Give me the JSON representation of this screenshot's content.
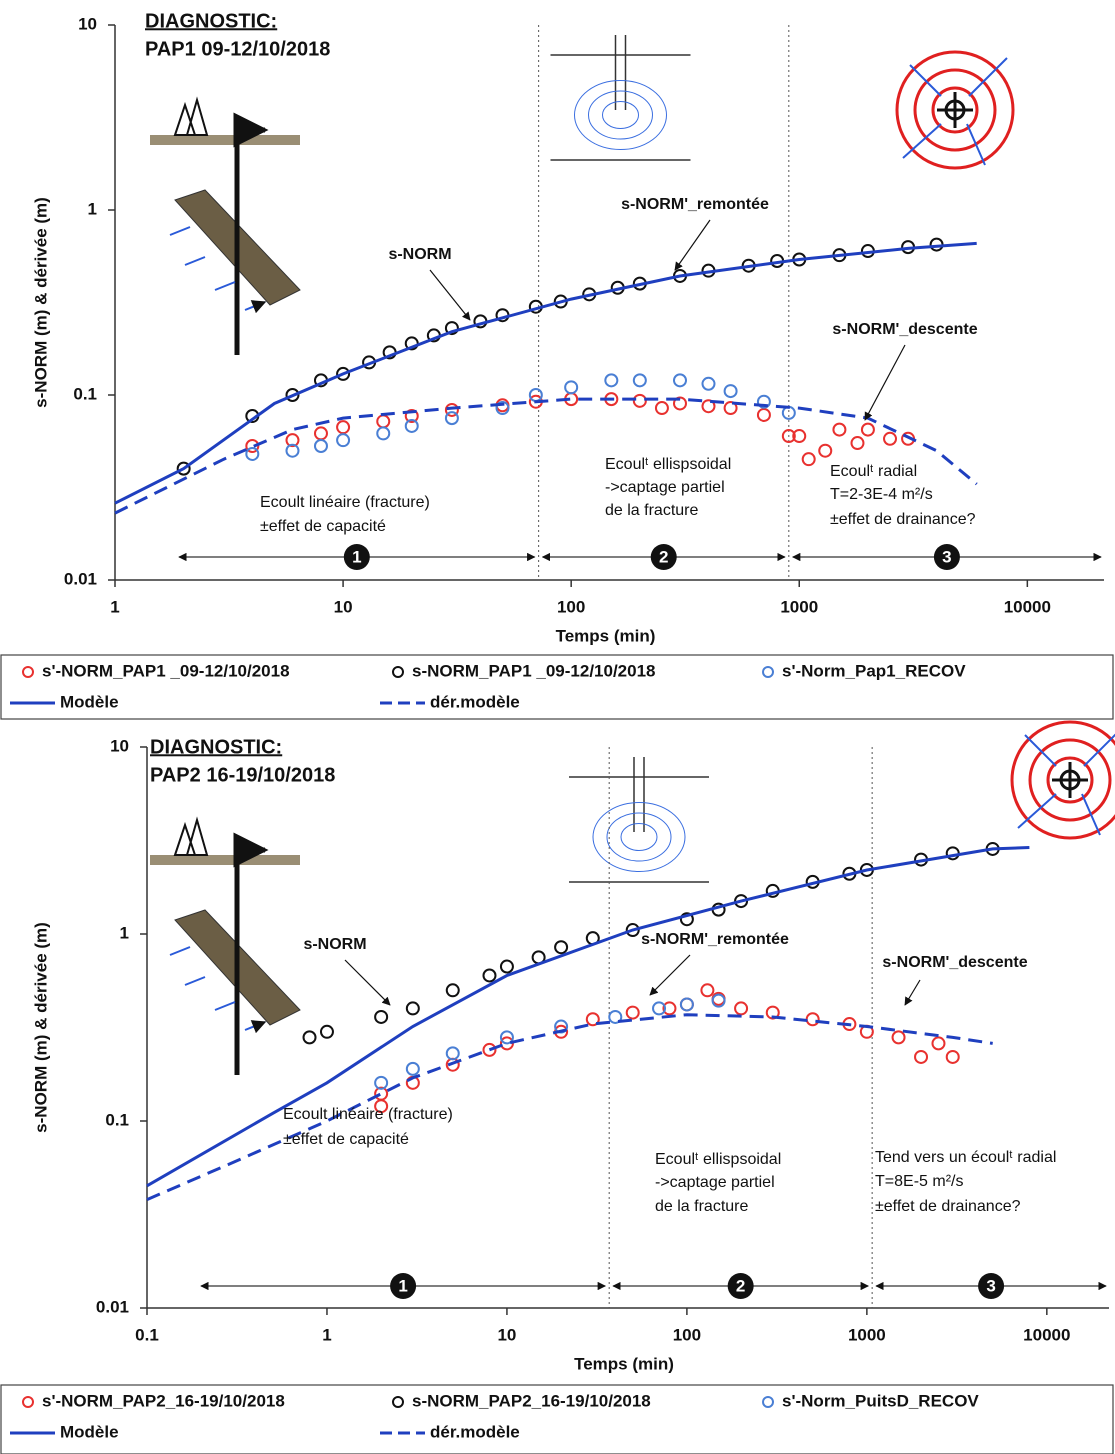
{
  "chart_data": [
    {
      "type": "scatter",
      "title": "DIAGNOSTIC:",
      "subtitle": "PAP1 09-12/10/2018",
      "x_label": "Temps (min)",
      "y_label": "s-NORM (m) & dérivée (m)",
      "xscale": "log",
      "yscale": "log",
      "xlim": [
        1,
        20000
      ],
      "ylim": [
        0.01,
        10
      ],
      "xticks": [
        1,
        10,
        100,
        1000,
        10000
      ],
      "yticks": [
        0.01,
        0.1,
        1,
        10
      ],
      "vlines": [
        72,
        900
      ],
      "regions": [
        "1",
        "2",
        "3"
      ],
      "annotations": [
        "s-NORM",
        "s-NORM'_remontée",
        "s-NORM'_descente",
        "Ecoult linéaire (fracture)",
        "±effet de capacité",
        "Ecoulᵗ ellispsoidal",
        "->captage partiel",
        "de la fracture",
        "Ecoulᵗ radial",
        "T=2-3E-4 m²/s",
        "±effet de drainance?"
      ],
      "series": [
        {
          "name": "s'-NORM_PAP1 _09-12/10/2018",
          "color": "#e8312f",
          "style": "circle",
          "x": [
            4,
            6,
            8,
            10,
            15,
            20,
            30,
            50,
            70,
            100,
            150,
            200,
            250,
            300,
            400,
            500,
            700,
            900,
            1000,
            1100,
            1300,
            1500,
            1800,
            2000,
            2500,
            3000
          ],
          "values": [
            0.053,
            0.057,
            0.062,
            0.067,
            0.072,
            0.077,
            0.083,
            0.088,
            0.092,
            0.095,
            0.095,
            0.093,
            0.085,
            0.09,
            0.087,
            0.085,
            0.078,
            0.06,
            0.06,
            0.045,
            0.05,
            0.065,
            0.055,
            0.065,
            0.058,
            0.058
          ]
        },
        {
          "name": "s-NORM_PAP1 _09-12/10/2018",
          "color": "#111111",
          "style": "circle",
          "x": [
            2,
            4,
            6,
            8,
            10,
            13,
            16,
            20,
            25,
            30,
            40,
            50,
            70,
            90,
            120,
            160,
            200,
            300,
            400,
            600,
            800,
            1000,
            1500,
            2000,
            3000,
            4000
          ],
          "values": [
            0.04,
            0.077,
            0.1,
            0.12,
            0.13,
            0.15,
            0.17,
            0.19,
            0.21,
            0.23,
            0.25,
            0.27,
            0.3,
            0.32,
            0.35,
            0.38,
            0.4,
            0.44,
            0.47,
            0.5,
            0.53,
            0.54,
            0.57,
            0.6,
            0.63,
            0.65
          ]
        },
        {
          "name": "s'-Norm_Pap1_RECOV",
          "color": "#4a7fd4",
          "style": "circle",
          "x": [
            4,
            6,
            8,
            10,
            15,
            20,
            30,
            50,
            70,
            100,
            150,
            200,
            300,
            400,
            500,
            700,
            900
          ],
          "values": [
            0.048,
            0.05,
            0.053,
            0.057,
            0.062,
            0.068,
            0.075,
            0.085,
            0.1,
            0.11,
            0.12,
            0.12,
            0.12,
            0.115,
            0.105,
            0.092,
            0.08
          ]
        },
        {
          "name": "Modèle",
          "color": "#1f3fbf",
          "style": "solid",
          "x": [
            1,
            2,
            5,
            10,
            30,
            100,
            300,
            1000,
            3000,
            6000
          ],
          "values": [
            0.026,
            0.04,
            0.09,
            0.13,
            0.22,
            0.33,
            0.44,
            0.54,
            0.62,
            0.66
          ]
        },
        {
          "name": "dér.modèle",
          "color": "#1f3fbf",
          "style": "dashed",
          "x": [
            1,
            3,
            6,
            10,
            30,
            100,
            300,
            1000,
            2000,
            4000,
            6000
          ],
          "values": [
            0.023,
            0.045,
            0.065,
            0.075,
            0.085,
            0.095,
            0.095,
            0.085,
            0.075,
            0.05,
            0.033
          ]
        }
      ]
    },
    {
      "type": "scatter",
      "title": "DIAGNOSTIC:",
      "subtitle": "PAP2 16-19/10/2018",
      "x_label": "Temps (min)",
      "y_label": "s-NORM (m) & dérivée (m)",
      "xscale": "log",
      "yscale": "log",
      "xlim": [
        0.1,
        20000
      ],
      "ylim": [
        0.01,
        10
      ],
      "xticks": [
        0.1,
        1,
        10,
        100,
        1000,
        10000
      ],
      "yticks": [
        0.01,
        0.1,
        1,
        10
      ],
      "vlines": [
        37,
        1070
      ],
      "regions": [
        "1",
        "2",
        "3"
      ],
      "annotations": [
        "s-NORM",
        "s-NORM'_remontée",
        "s-NORM'_descente",
        "Ecoult linéaire (fracture)",
        "±effet de capacité",
        "Ecoulᵗ ellispsoidal",
        "->captage partiel",
        "de la fracture",
        "Tend vers un écoulᵗ radial",
        "T=8E-5 m²/s",
        "±effet de drainance?"
      ],
      "series": [
        {
          "name": "s'-NORM_PAP2_16-19/10/2018",
          "color": "#e8312f",
          "style": "circle",
          "x": [
            2,
            2,
            3,
            5,
            8,
            10,
            20,
            30,
            50,
            80,
            100,
            130,
            150,
            200,
            300,
            500,
            800,
            1000,
            1500,
            2000,
            2500,
            3000
          ],
          "values": [
            0.12,
            0.14,
            0.16,
            0.2,
            0.24,
            0.26,
            0.3,
            0.35,
            0.38,
            0.4,
            0.42,
            0.5,
            0.45,
            0.4,
            0.38,
            0.35,
            0.33,
            0.3,
            0.28,
            0.22,
            0.26,
            0.22
          ]
        },
        {
          "name": "s-NORM_PAP2_16-19/10/2018",
          "color": "#111111",
          "style": "circle",
          "x": [
            0.8,
            1,
            2,
            3,
            5,
            8,
            10,
            15,
            20,
            30,
            50,
            100,
            150,
            200,
            300,
            500,
            800,
            1000,
            2000,
            3000,
            5000
          ],
          "values": [
            0.28,
            0.3,
            0.36,
            0.4,
            0.5,
            0.6,
            0.67,
            0.75,
            0.85,
            0.95,
            1.05,
            1.2,
            1.35,
            1.5,
            1.7,
            1.9,
            2.1,
            2.2,
            2.5,
            2.7,
            2.85
          ]
        },
        {
          "name": "s'-Norm_PuitsD_RECOV",
          "color": "#4a7fd4",
          "style": "circle",
          "x": [
            2,
            3,
            5,
            10,
            20,
            40,
            70,
            100,
            150
          ],
          "values": [
            0.16,
            0.19,
            0.23,
            0.28,
            0.32,
            0.36,
            0.4,
            0.42,
            0.44
          ]
        },
        {
          "name": "Modèle",
          "color": "#1f3fbf",
          "style": "solid",
          "x": [
            0.1,
            0.5,
            1,
            3,
            10,
            50,
            200,
            1000,
            5000,
            8000
          ],
          "values": [
            0.045,
            0.11,
            0.16,
            0.32,
            0.6,
            1.05,
            1.5,
            2.2,
            2.85,
            2.9
          ]
        },
        {
          "name": "dér.modèle",
          "color": "#1f3fbf",
          "style": "dashed",
          "x": [
            0.1,
            0.3,
            1,
            3,
            10,
            30,
            100,
            300,
            1000,
            3000,
            5000
          ],
          "values": [
            0.038,
            0.06,
            0.1,
            0.17,
            0.26,
            0.33,
            0.37,
            0.36,
            0.32,
            0.28,
            0.26
          ]
        }
      ]
    }
  ]
}
